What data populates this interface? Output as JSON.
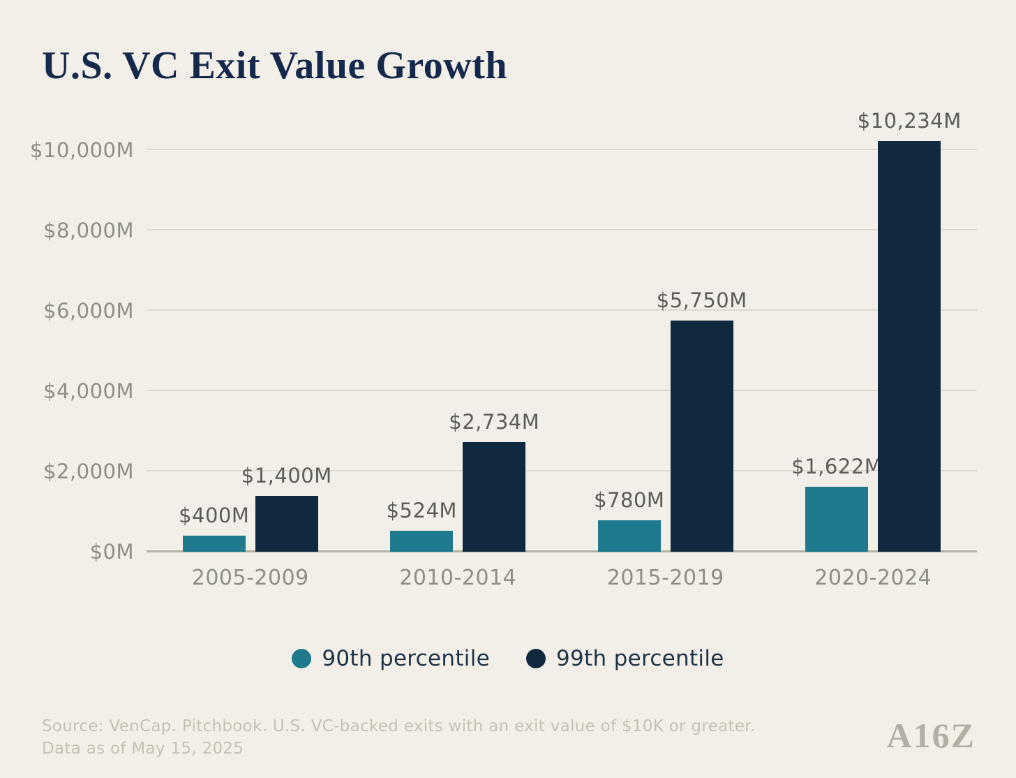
{
  "title": "U.S. VC Exit Value Growth",
  "chart_data": {
    "type": "bar",
    "categories": [
      "2005-2009",
      "2010-2014",
      "2015-2019",
      "2020-2024"
    ],
    "series": [
      {
        "name": "90th percentile",
        "color": "#1e7a8c",
        "values": [
          400,
          524,
          780,
          1622
        ],
        "labels": [
          "$400M",
          "$524M",
          "$780M",
          "$1,622M"
        ]
      },
      {
        "name": "99th percentile",
        "color": "#11293f",
        "values": [
          1400,
          2734,
          5750,
          10234
        ],
        "labels": [
          "$1,400M",
          "$2,734M",
          "$5,750M",
          "$10,234M"
        ]
      }
    ],
    "yticks": [
      0,
      2000,
      4000,
      6000,
      8000,
      10000
    ],
    "ytick_labels": [
      "$0M",
      "$2,000M",
      "$4,000M",
      "$6,000M",
      "$8,000M",
      "$10,000M"
    ],
    "ylim": [
      0,
      10000
    ],
    "grid": true,
    "legend_position": "bottom",
    "title": "U.S. VC Exit Value Growth"
  },
  "footer": {
    "source_line1": "Source: VenCap. Pitchbook. U.S. VC-backed exits with an exit value of $10K or greater.",
    "source_line2": "Data as of May 15, 2025",
    "logo_text": "A16Z"
  },
  "colors": {
    "background": "#f2efe8",
    "teal": "#1e7a8c",
    "navy": "#11293f",
    "title_text": "#14294b",
    "axis_text": "#8e8d86",
    "value_label_text": "#5d5c57",
    "gridline": "#ddd9cd",
    "baseline": "#b6b1a5",
    "legend_text": "#1f3547",
    "source_text": "#c6c1b4"
  }
}
